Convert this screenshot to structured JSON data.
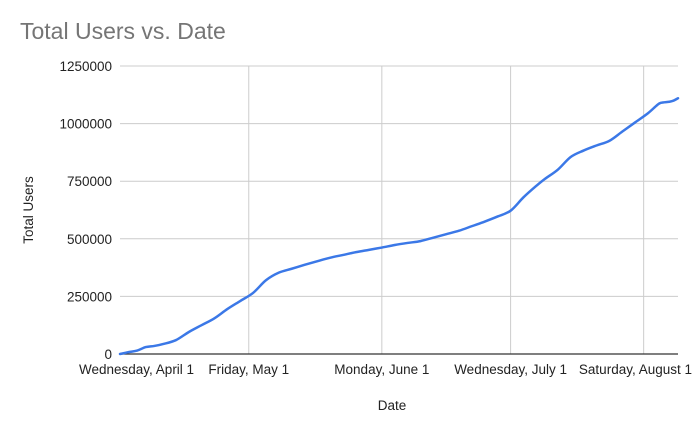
{
  "chart_data": {
    "type": "line",
    "title": "Total Users vs. Date",
    "xlabel": "Date",
    "ylabel": "Total Users",
    "ylim": [
      0,
      1250000
    ],
    "yticks": [
      0,
      250000,
      500000,
      750000,
      1000000,
      1250000
    ],
    "ytick_labels": [
      "0",
      "250000",
      "500000",
      "750000",
      "1000000",
      "1250000"
    ],
    "xlim": [
      "2020-04-01",
      "2020-08-09"
    ],
    "xticks": [
      "2020-04-01",
      "2020-05-01",
      "2020-06-01",
      "2020-07-01",
      "2020-08-01"
    ],
    "xtick_labels": [
      "Wednesday, April 1",
      "Friday, May 1",
      "Monday, June 1",
      "Wednesday, July 1",
      "Saturday, August 1"
    ],
    "grid": true,
    "colors": {
      "line": "#3b78e7",
      "grid": "#cccccc",
      "axis": "#333333",
      "title": "#757575"
    },
    "series": [
      {
        "name": "",
        "x": [
          "2020-04-01",
          "2020-04-03",
          "2020-04-05",
          "2020-04-07",
          "2020-04-09",
          "2020-04-11",
          "2020-04-14",
          "2020-04-17",
          "2020-04-20",
          "2020-04-23",
          "2020-04-26",
          "2020-04-29",
          "2020-05-02",
          "2020-05-05",
          "2020-05-08",
          "2020-05-11",
          "2020-05-14",
          "2020-05-17",
          "2020-05-20",
          "2020-05-23",
          "2020-05-26",
          "2020-05-29",
          "2020-06-01",
          "2020-06-04",
          "2020-06-07",
          "2020-06-10",
          "2020-06-13",
          "2020-06-16",
          "2020-06-19",
          "2020-06-22",
          "2020-06-25",
          "2020-06-28",
          "2020-07-01",
          "2020-07-04",
          "2020-07-07",
          "2020-07-09",
          "2020-07-12",
          "2020-07-15",
          "2020-07-18",
          "2020-07-21",
          "2020-07-24",
          "2020-07-27",
          "2020-07-30",
          "2020-08-02",
          "2020-08-04",
          "2020-08-05",
          "2020-08-07",
          "2020-08-08",
          "2020-08-09"
        ],
        "values": [
          0,
          8000,
          15000,
          30000,
          35000,
          43000,
          60000,
          95000,
          125000,
          155000,
          195000,
          230000,
          265000,
          320000,
          353000,
          370000,
          387000,
          403000,
          418000,
          430000,
          442000,
          452000,
          462000,
          473000,
          482000,
          490000,
          505000,
          520000,
          535000,
          555000,
          575000,
          597000,
          622000,
          680000,
          730000,
          760000,
          800000,
          855000,
          883000,
          905000,
          925000,
          965000,
          1005000,
          1045000,
          1078000,
          1090000,
          1095000,
          1100000,
          1110000
        ]
      }
    ]
  }
}
